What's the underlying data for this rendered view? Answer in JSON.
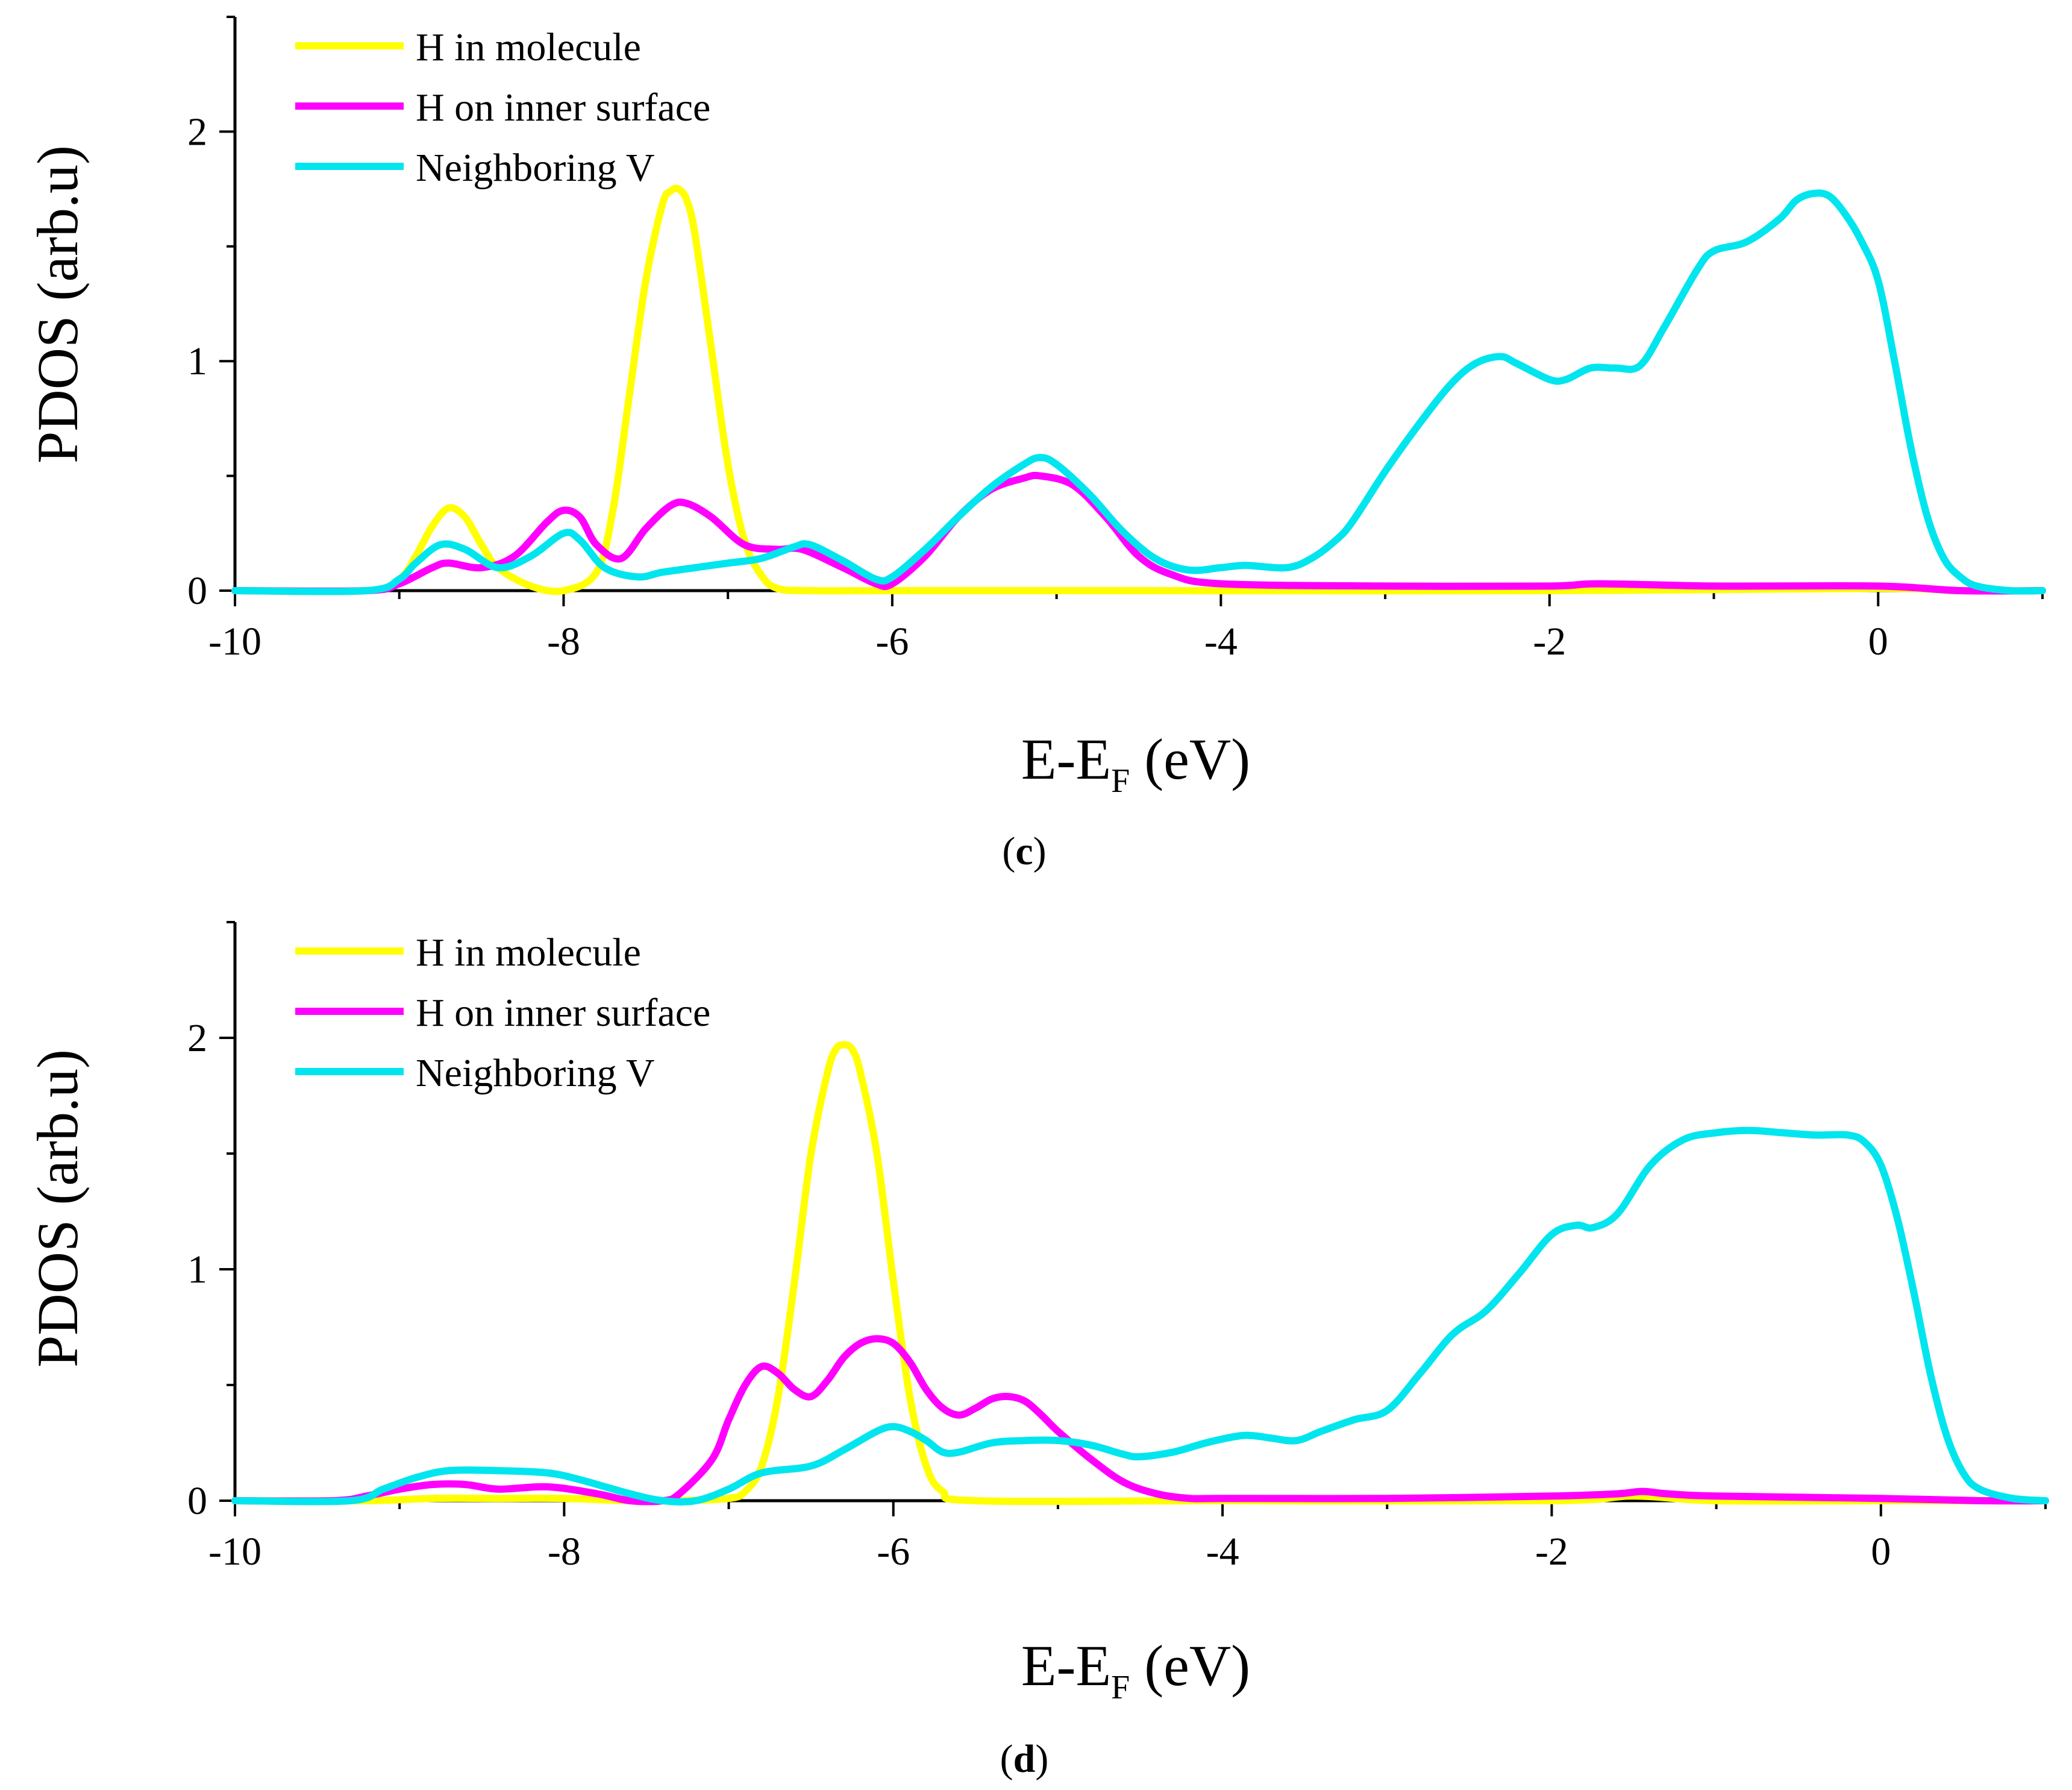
{
  "chart_data": [
    {
      "panel": "(c)",
      "caption_letter": "c",
      "type": "line",
      "title": "",
      "xlabel_main": "E-E",
      "xlabel_sub": "F",
      "xlabel_tail": " (eV)",
      "ylabel": "PDOS (arb.u)",
      "xlim": [
        -10,
        1
      ],
      "ylim": [
        0,
        2.5
      ],
      "xticks": [
        -10,
        -8,
        -6,
        -4,
        -2,
        0
      ],
      "xtick_labels": [
        "-10",
        "-8",
        "-6",
        "-4",
        "-2",
        "0"
      ],
      "yticks": [
        0,
        1,
        2
      ],
      "ytick_labels": [
        "0",
        "1",
        "2"
      ],
      "grid": false,
      "legend_position": "top-left",
      "series": [
        {
          "name": "H in molecule",
          "color": "#ffff00",
          "x": [
            -10,
            -9.2,
            -9.0,
            -8.9,
            -8.8,
            -8.7,
            -8.6,
            -8.5,
            -8.4,
            -8.2,
            -8.0,
            -7.8,
            -7.7,
            -7.6,
            -7.5,
            -7.4,
            -7.35,
            -7.3,
            -7.25,
            -7.2,
            -7.1,
            -7.0,
            -6.9,
            -6.8,
            -6.7,
            -6.5,
            -6.0,
            -4.5,
            -2.0,
            0.0,
            0.5,
            1.0
          ],
          "values": [
            0,
            0,
            0.05,
            0.15,
            0.28,
            0.36,
            0.32,
            0.2,
            0.1,
            0.02,
            0.0,
            0.08,
            0.35,
            0.85,
            1.35,
            1.68,
            1.74,
            1.75,
            1.7,
            1.55,
            1.05,
            0.55,
            0.22,
            0.07,
            0.01,
            0.0,
            0.0,
            0.0,
            0.0,
            0.01,
            0.0,
            0.0
          ]
        },
        {
          "name": "H on inner surface",
          "color": "#ff00ff",
          "x": [
            -10,
            -9.2,
            -9.0,
            -8.8,
            -8.7,
            -8.5,
            -8.3,
            -8.1,
            -8.0,
            -7.9,
            -7.8,
            -7.65,
            -7.5,
            -7.35,
            -7.25,
            -7.1,
            -6.9,
            -6.7,
            -6.55,
            -6.3,
            -6.1,
            -6.0,
            -5.8,
            -5.6,
            -5.4,
            -5.2,
            -5.1,
            -4.9,
            -4.7,
            -4.5,
            -4.3,
            -4.0,
            -3.0,
            -2.0,
            -1.7,
            -1.0,
            0.0,
            0.5,
            1.0
          ],
          "values": [
            0,
            0,
            0.03,
            0.1,
            0.12,
            0.1,
            0.15,
            0.3,
            0.35,
            0.32,
            0.2,
            0.14,
            0.27,
            0.37,
            0.38,
            0.32,
            0.2,
            0.18,
            0.18,
            0.1,
            0.03,
            0.03,
            0.15,
            0.32,
            0.44,
            0.49,
            0.5,
            0.46,
            0.32,
            0.15,
            0.07,
            0.03,
            0.02,
            0.02,
            0.03,
            0.02,
            0.02,
            0.0,
            0.0
          ]
        },
        {
          "name": "Neighboring V",
          "color": "#00e5ee",
          "x": [
            -10,
            -9.2,
            -9.0,
            -8.9,
            -8.75,
            -8.6,
            -8.4,
            -8.2,
            -8.0,
            -7.9,
            -7.75,
            -7.55,
            -7.4,
            -7.2,
            -7.0,
            -6.8,
            -6.6,
            -6.5,
            -6.3,
            -6.1,
            -6.0,
            -5.8,
            -5.6,
            -5.4,
            -5.2,
            -5.1,
            -5.0,
            -4.8,
            -4.6,
            -4.4,
            -4.2,
            -4.0,
            -3.85,
            -3.6,
            -3.45,
            -3.3,
            -3.2,
            -3.0,
            -2.8,
            -2.6,
            -2.45,
            -2.3,
            -2.2,
            -2.0,
            -1.9,
            -1.75,
            -1.6,
            -1.45,
            -1.3,
            -1.1,
            -1.0,
            -0.8,
            -0.6,
            -0.5,
            -0.4,
            -0.3,
            -0.2,
            -0.1,
            0.0,
            0.1,
            0.2,
            0.3,
            0.4,
            0.5,
            0.6,
            0.8,
            1.0
          ],
          "values": [
            0,
            0,
            0.05,
            0.12,
            0.2,
            0.18,
            0.1,
            0.15,
            0.25,
            0.22,
            0.1,
            0.06,
            0.08,
            0.1,
            0.12,
            0.14,
            0.19,
            0.2,
            0.13,
            0.05,
            0.06,
            0.18,
            0.32,
            0.45,
            0.55,
            0.58,
            0.55,
            0.42,
            0.26,
            0.14,
            0.09,
            0.1,
            0.11,
            0.1,
            0.14,
            0.22,
            0.3,
            0.52,
            0.72,
            0.9,
            0.99,
            1.02,
            0.99,
            0.92,
            0.92,
            0.97,
            0.97,
            0.98,
            1.15,
            1.4,
            1.48,
            1.52,
            1.62,
            1.7,
            1.73,
            1.72,
            1.64,
            1.52,
            1.35,
            1.0,
            0.62,
            0.32,
            0.14,
            0.06,
            0.02,
            0.0,
            0.0
          ]
        }
      ]
    },
    {
      "panel": "(d)",
      "caption_letter": "d",
      "type": "line",
      "title": "",
      "xlabel_main": "E-E",
      "xlabel_sub": "F",
      "xlabel_tail": " (eV)",
      "ylabel": "PDOS (arb.u)",
      "xlim": [
        -10,
        1
      ],
      "ylim": [
        0,
        2.5
      ],
      "xticks": [
        -10,
        -8,
        -6,
        -4,
        -2,
        0
      ],
      "xtick_labels": [
        "-10",
        "-8",
        "-6",
        "-4",
        "-2",
        "0"
      ],
      "yticks": [
        0,
        1,
        2
      ],
      "ytick_labels": [
        "0",
        "1",
        "2"
      ],
      "grid": false,
      "legend_position": "top-left",
      "series": [
        {
          "name": "H in molecule",
          "color": "#ffff00",
          "x": [
            -10,
            -9.2,
            -8.8,
            -8.4,
            -8.0,
            -7.6,
            -7.3,
            -7.0,
            -6.9,
            -6.8,
            -6.7,
            -6.6,
            -6.5,
            -6.4,
            -6.35,
            -6.3,
            -6.25,
            -6.2,
            -6.1,
            -6.0,
            -5.9,
            -5.8,
            -5.7,
            -5.5,
            -4.0,
            -2.0,
            -1.5,
            -1.0,
            0.0,
            0.5,
            1.0
          ],
          "values": [
            0,
            0,
            0.01,
            0.01,
            0.01,
            0.0,
            0.0,
            0.01,
            0.04,
            0.15,
            0.45,
            0.95,
            1.5,
            1.85,
            1.95,
            1.97,
            1.95,
            1.85,
            1.5,
            0.95,
            0.45,
            0.15,
            0.04,
            0.0,
            0.0,
            0.0,
            0.02,
            0.0,
            0.0,
            0.0,
            0.0
          ]
        },
        {
          "name": "H on inner surface",
          "color": "#ff00ff",
          "x": [
            -10,
            -9.4,
            -9.2,
            -9.0,
            -8.8,
            -8.6,
            -8.4,
            -8.1,
            -7.8,
            -7.6,
            -7.4,
            -7.3,
            -7.1,
            -7.0,
            -6.9,
            -6.8,
            -6.7,
            -6.6,
            -6.5,
            -6.4,
            -6.3,
            -6.2,
            -6.1,
            -6.0,
            -5.9,
            -5.8,
            -5.7,
            -5.6,
            -5.5,
            -5.4,
            -5.3,
            -5.2,
            -5.1,
            -5.0,
            -4.8,
            -4.6,
            -4.4,
            -4.2,
            -4.0,
            -3.0,
            -2.0,
            -1.6,
            -1.45,
            -1.3,
            -1.0,
            0.0,
            0.6,
            1.0
          ],
          "values": [
            0,
            0,
            0.02,
            0.05,
            0.07,
            0.07,
            0.05,
            0.06,
            0.03,
            0.0,
            0.0,
            0.03,
            0.18,
            0.35,
            0.5,
            0.58,
            0.55,
            0.48,
            0.45,
            0.52,
            0.62,
            0.68,
            0.7,
            0.68,
            0.6,
            0.48,
            0.4,
            0.37,
            0.4,
            0.44,
            0.45,
            0.43,
            0.37,
            0.3,
            0.18,
            0.08,
            0.03,
            0.01,
            0.01,
            0.01,
            0.02,
            0.03,
            0.04,
            0.03,
            0.02,
            0.01,
            0.0,
            0.0
          ]
        },
        {
          "name": "Neighboring V",
          "color": "#00e5ee",
          "x": [
            -10,
            -9.3,
            -9.1,
            -8.9,
            -8.7,
            -8.4,
            -8.1,
            -7.9,
            -7.6,
            -7.4,
            -7.2,
            -7.0,
            -6.8,
            -6.5,
            -6.3,
            -6.1,
            -6.0,
            -5.9,
            -5.8,
            -5.7,
            -5.6,
            -5.4,
            -5.2,
            -5.0,
            -4.8,
            -4.6,
            -4.5,
            -4.3,
            -4.1,
            -3.9,
            -3.8,
            -3.7,
            -3.55,
            -3.4,
            -3.2,
            -3.0,
            -2.8,
            -2.6,
            -2.4,
            -2.2,
            -2.0,
            -1.85,
            -1.75,
            -1.6,
            -1.4,
            -1.2,
            -1.0,
            -0.8,
            -0.6,
            -0.4,
            -0.2,
            -0.1,
            0.0,
            0.1,
            0.2,
            0.3,
            0.4,
            0.5,
            0.6,
            0.8,
            1.0
          ],
          "values": [
            0,
            0,
            0.05,
            0.1,
            0.13,
            0.13,
            0.12,
            0.09,
            0.03,
            0.0,
            0.0,
            0.05,
            0.12,
            0.15,
            0.22,
            0.3,
            0.32,
            0.3,
            0.26,
            0.21,
            0.21,
            0.25,
            0.26,
            0.26,
            0.24,
            0.2,
            0.19,
            0.21,
            0.25,
            0.28,
            0.28,
            0.27,
            0.26,
            0.3,
            0.35,
            0.39,
            0.55,
            0.72,
            0.82,
            0.98,
            1.15,
            1.19,
            1.18,
            1.24,
            1.45,
            1.56,
            1.59,
            1.6,
            1.59,
            1.58,
            1.58,
            1.55,
            1.45,
            1.22,
            0.9,
            0.55,
            0.28,
            0.12,
            0.05,
            0.01,
            0.0
          ]
        }
      ]
    }
  ]
}
